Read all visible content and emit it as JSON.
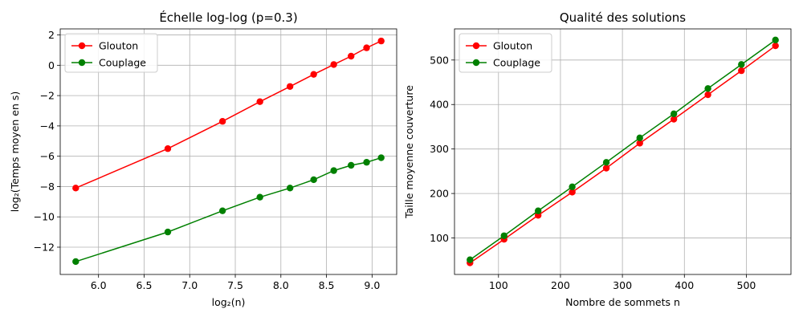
{
  "chart_data": [
    {
      "type": "line",
      "title": "Échelle log-log (p=0.3)",
      "xlabel": "log₂(n)",
      "ylabel": "log₂(Temps moyen en s)",
      "xlim": [
        5.58,
        9.27
      ],
      "ylim": [
        -13.8,
        2.4
      ],
      "xticks": [
        6.0,
        6.5,
        7.0,
        7.5,
        8.0,
        8.5,
        9.0
      ],
      "xtick_labels": [
        "6.0",
        "6.5",
        "7.0",
        "7.5",
        "8.0",
        "8.5",
        "9.0"
      ],
      "yticks": [
        -12,
        -10,
        -8,
        -6,
        -4,
        -2,
        0,
        2
      ],
      "ytick_labels": [
        "−12",
        "−10",
        "−8",
        "−6",
        "−4",
        "−2",
        "0",
        "2"
      ],
      "grid": true,
      "legend_position": "upper-left",
      "series": [
        {
          "name": "Glouton",
          "color": "#ff0000",
          "x": [
            5.75,
            6.76,
            7.36,
            7.77,
            8.1,
            8.36,
            8.58,
            8.77,
            8.94,
            9.1
          ],
          "y": [
            -8.1,
            -5.5,
            -3.7,
            -2.4,
            -1.4,
            -0.6,
            0.05,
            0.6,
            1.15,
            1.6
          ]
        },
        {
          "name": "Couplage",
          "color": "#008000",
          "x": [
            5.75,
            6.76,
            7.36,
            7.77,
            8.1,
            8.36,
            8.58,
            8.77,
            8.94,
            9.1
          ],
          "y": [
            -12.95,
            -11.0,
            -9.6,
            -8.7,
            -8.1,
            -7.55,
            -6.95,
            -6.6,
            -6.4,
            -6.1
          ]
        }
      ]
    },
    {
      "type": "line",
      "title": "Qualité des solutions",
      "xlabel": "Nombre de sommets n",
      "ylabel": "Taille moyenne couverture",
      "xlim": [
        29,
        572
      ],
      "ylim": [
        18,
        570
      ],
      "xticks": [
        100,
        200,
        300,
        400,
        500
      ],
      "xtick_labels": [
        "100",
        "200",
        "300",
        "400",
        "500"
      ],
      "yticks": [
        100,
        200,
        300,
        400,
        500
      ],
      "ytick_labels": [
        "100",
        "200",
        "300",
        "400",
        "500"
      ],
      "grid": true,
      "legend_position": "upper-left",
      "series": [
        {
          "name": "Glouton",
          "color": "#ff0000",
          "x": [
            54,
            109,
            164,
            219,
            274,
            328,
            383,
            438,
            492,
            547
          ],
          "y": [
            44,
            97,
            151,
            203,
            257,
            313,
            367,
            422,
            476,
            532
          ]
        },
        {
          "name": "Couplage",
          "color": "#008000",
          "x": [
            54,
            109,
            164,
            219,
            274,
            328,
            383,
            438,
            492,
            547
          ],
          "y": [
            51,
            105,
            161,
            215,
            270,
            325,
            379,
            436,
            490,
            545
          ]
        }
      ]
    }
  ]
}
